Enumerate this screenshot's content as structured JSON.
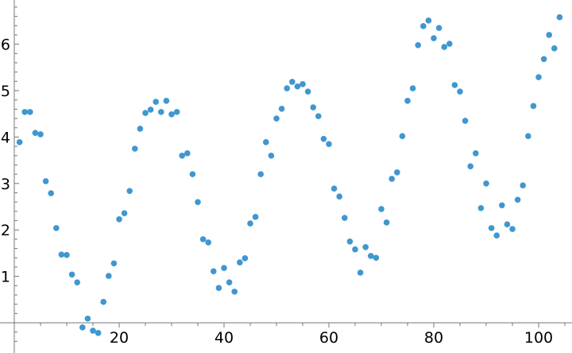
{
  "chart_data": {
    "type": "scatter",
    "title": "",
    "xlabel": "",
    "ylabel": "",
    "xlim": [
      0,
      106
    ],
    "ylim": [
      -0.6,
      6.95
    ],
    "grid": false,
    "point_color": "#3f97d0",
    "axis_color": "#777777",
    "x_ticks": [
      20,
      40,
      60,
      80,
      100
    ],
    "x_tick_labels": [
      "20",
      "40",
      "60",
      "80",
      "100"
    ],
    "y_ticks": [
      1,
      2,
      3,
      4,
      5,
      6
    ],
    "y_tick_labels": [
      "1",
      "2",
      "3",
      "4",
      "5",
      "6"
    ],
    "x": [
      1,
      2,
      3,
      4,
      5,
      6,
      7,
      8,
      9,
      10,
      11,
      12,
      13,
      14,
      15,
      16,
      17,
      18,
      19,
      20,
      21,
      22,
      23,
      24,
      25,
      26,
      27,
      28,
      29,
      30,
      31,
      32,
      33,
      34,
      35,
      36,
      37,
      38,
      39,
      40,
      41,
      42,
      43,
      44,
      45,
      46,
      47,
      48,
      49,
      50,
      51,
      52,
      53,
      54,
      55,
      56,
      57,
      58,
      59,
      60,
      61,
      62,
      63,
      64,
      65,
      66,
      67,
      68,
      69,
      70,
      71,
      72,
      73,
      74,
      75,
      76,
      77,
      78,
      79,
      80,
      81,
      82,
      83,
      84,
      85,
      86,
      87,
      88,
      89,
      90,
      91,
      92,
      93,
      94,
      95,
      96,
      97,
      98,
      99,
      100,
      101,
      102,
      103,
      104
    ],
    "y": [
      3.89,
      4.54,
      4.54,
      4.09,
      4.06,
      3.05,
      2.79,
      2.04,
      1.47,
      1.46,
      1.04,
      0.87,
      -0.1,
      0.09,
      -0.17,
      -0.22,
      0.45,
      1.01,
      1.28,
      2.23,
      2.36,
      2.84,
      3.75,
      4.18,
      4.52,
      4.59,
      4.76,
      4.54,
      4.78,
      4.49,
      4.54,
      3.6,
      3.65,
      3.2,
      2.6,
      1.8,
      1.73,
      1.11,
      0.75,
      1.18,
      0.87,
      0.67,
      1.3,
      1.39,
      2.14,
      2.28,
      3.2,
      3.89,
      3.6,
      4.4,
      4.61,
      5.05,
      5.19,
      5.09,
      5.14,
      4.98,
      4.64,
      4.45,
      3.96,
      3.85,
      2.89,
      2.72,
      2.26,
      1.75,
      1.58,
      1.08,
      1.63,
      1.44,
      1.4,
      2.45,
      2.16,
      3.1,
      3.24,
      4.02,
      4.78,
      5.05,
      5.98,
      6.39,
      6.51,
      6.13,
      6.35,
      5.94,
      6.01,
      5.12,
      4.98,
      4.35,
      3.37,
      3.65,
      2.47,
      3.0,
      2.04,
      1.88,
      2.53,
      2.12,
      2.02,
      2.65,
      2.96,
      4.02,
      4.67,
      5.29,
      5.68,
      6.2,
      5.91,
      6.58
    ]
  }
}
